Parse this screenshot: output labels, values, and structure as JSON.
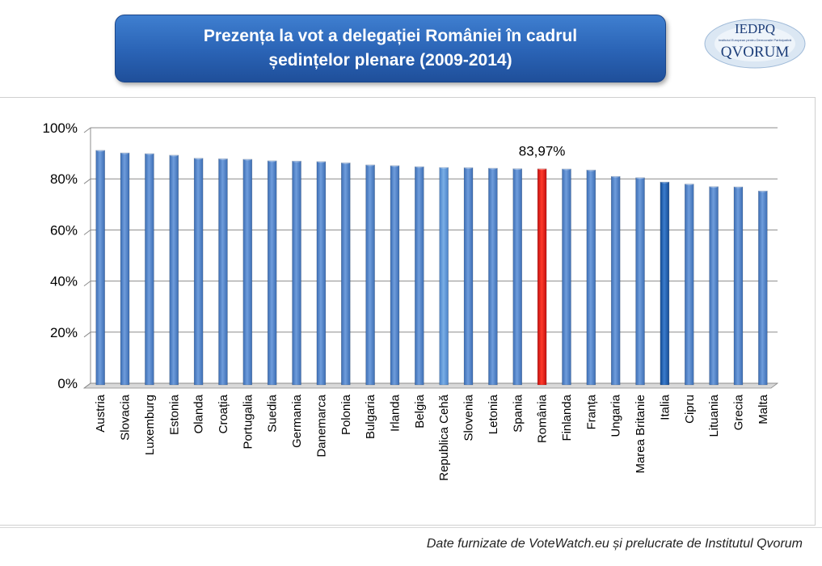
{
  "title": "Prezența la vot a delegației României în cadrul ședințelor plenare (2009-2014)",
  "logo": {
    "top_text": "IEDPQ",
    "small_text": "Institutul European pentru Democrație Participativă",
    "bottom_text": "QVORUM"
  },
  "footer": "Date furnizate de VoteWatch.eu și prelucrate de Institutul Qvorum",
  "colors": {
    "bar": "#4f81c7",
    "highlight": "#e21a1a",
    "italia": "#1f5fae",
    "light": "#5b93d6"
  },
  "chart_data": {
    "type": "bar",
    "title": "Prezența la vot a delegației României în cadrul ședințelor plenare (2009-2014)",
    "xlabel": "",
    "ylabel": "",
    "ylim": [
      0,
      100
    ],
    "yticks": [
      "0%",
      "20%",
      "40%",
      "60%",
      "80%",
      "100%"
    ],
    "grid": true,
    "categories": [
      "Austria",
      "Slovacia",
      "Luxemburg",
      "Estonia",
      "Olanda",
      "Croația",
      "Portugalia",
      "Suedia",
      "Germania",
      "Danemarca",
      "Polonia",
      "Bulgaria",
      "Irlanda",
      "Belgia",
      "Republica Cehă",
      "Slovenia",
      "Letonia",
      "Spania",
      "România",
      "Finlanda",
      "Franța",
      "Ungaria",
      "Marea Britanie",
      "Italia",
      "Cipru",
      "Lituania",
      "Grecia",
      "Malta"
    ],
    "values": [
      91.2,
      90.2,
      89.9,
      89.3,
      88.1,
      87.9,
      87.7,
      87.1,
      87.0,
      86.8,
      86.3,
      85.5,
      85.2,
      84.8,
      84.5,
      84.4,
      84.2,
      84.0,
      83.97,
      83.9,
      83.5,
      81.0,
      80.5,
      78.8,
      78.0,
      77.0,
      76.9,
      75.3
    ],
    "highlight_index": 18,
    "annotation": "83,97%"
  }
}
